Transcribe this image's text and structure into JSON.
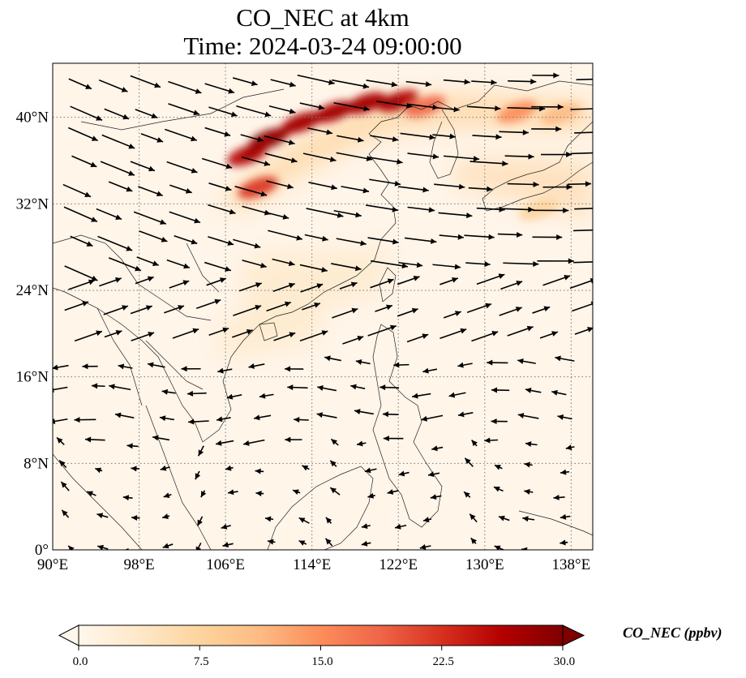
{
  "title_line1": "CO_NEC at 4km",
  "title_line2": "Time: 2024-03-24 09:00:00",
  "x_ticks": [
    {
      "lon": 90,
      "label": "90°E"
    },
    {
      "lon": 98,
      "label": "98°E"
    },
    {
      "lon": 106,
      "label": "106°E"
    },
    {
      "lon": 114,
      "label": "114°E"
    },
    {
      "lon": 122,
      "label": "122°E"
    },
    {
      "lon": 130,
      "label": "130°E"
    },
    {
      "lon": 138,
      "label": "138°E"
    }
  ],
  "y_ticks": [
    {
      "lat": 0,
      "label": "0°"
    },
    {
      "lat": 8,
      "label": "8°N"
    },
    {
      "lat": 16,
      "label": "16°N"
    },
    {
      "lat": 24,
      "label": "24°N"
    },
    {
      "lat": 32,
      "label": "32°N"
    },
    {
      "lat": 40,
      "label": "40°N"
    }
  ],
  "colorbar": {
    "label": "CO_NEC (ppbv)",
    "min": 0,
    "max": 30,
    "ticks": [
      "0.0",
      "7.5",
      "15.0",
      "22.5",
      "30.0"
    ],
    "colormap": "OrRd",
    "extend": "both"
  },
  "map_extent": {
    "lon_min": 90,
    "lon_max": 140,
    "lat_min": 0,
    "lat_max": 45
  },
  "gridlines": "dotted",
  "plume_hotspots": [
    {
      "lon": 108.0,
      "lat": 36.5,
      "value": 28
    },
    {
      "lon": 110.0,
      "lat": 38.0,
      "value": 29
    },
    {
      "lon": 113.0,
      "lat": 39.5,
      "value": 27
    },
    {
      "lon": 116.0,
      "lat": 40.5,
      "value": 25
    },
    {
      "lon": 119.0,
      "lat": 41.3,
      "value": 26
    },
    {
      "lon": 122.0,
      "lat": 41.5,
      "value": 27
    },
    {
      "lon": 124.5,
      "lat": 41.0,
      "value": 18
    },
    {
      "lon": 133.0,
      "lat": 40.5,
      "value": 14
    },
    {
      "lon": 137.0,
      "lat": 40.3,
      "value": 12
    },
    {
      "lon": 109.0,
      "lat": 33.5,
      "value": 22
    },
    {
      "lon": 135.0,
      "lat": 31.5,
      "value": 6
    }
  ]
}
